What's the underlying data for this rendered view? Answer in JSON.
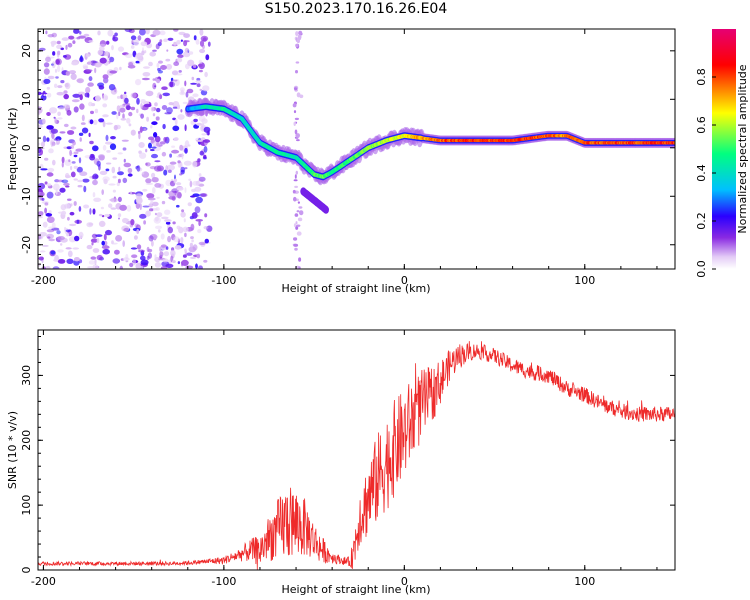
{
  "figure": {
    "title": "S150.2023.170.16.26.E04"
  },
  "chart_data": [
    {
      "type": "heatmap",
      "title": "",
      "xlabel": "Height of straight line (km)",
      "ylabel": "Frequency (Hz)",
      "xlim": [
        -203,
        150
      ],
      "ylim": [
        -25,
        24.5
      ],
      "xticks": [
        -200,
        -100,
        0,
        100
      ],
      "yticks": [
        -20,
        -10,
        0,
        10,
        20
      ],
      "colorbar": {
        "label": "Normalized spectral amplitude",
        "range": [
          0,
          1
        ],
        "ticks": [
          "0.0",
          "0.2",
          "0.4",
          "0.6",
          "0.8"
        ],
        "colors": [
          "#ffffff",
          "#e4ccf6",
          "#8a2be2",
          "#2a00ff",
          "#00c0ff",
          "#00ff80",
          "#ffff00",
          "#ff0000",
          "#e60073"
        ]
      },
      "ridge": {
        "x": [
          -120,
          -110,
          -100,
          -90,
          -80,
          -70,
          -60,
          -50,
          -45,
          -40,
          -30,
          -20,
          -10,
          0,
          20,
          40,
          60,
          80,
          90,
          100,
          110,
          120,
          150
        ],
        "y": [
          8,
          8.5,
          8,
          6,
          1,
          -1,
          -2,
          -5.5,
          -6,
          -5,
          -2.5,
          0,
          1.5,
          2.5,
          1.5,
          1.5,
          1.5,
          2.5,
          2.5,
          1,
          1,
          1,
          1
        ],
        "amplitude": [
          0.3,
          0.45,
          0.5,
          0.4,
          0.45,
          0.5,
          0.45,
          0.55,
          0.6,
          0.5,
          0.55,
          0.6,
          0.65,
          0.7,
          0.85,
          0.9,
          0.88,
          0.85,
          0.8,
          0.85,
          0.85,
          0.85,
          0.9
        ]
      }
    },
    {
      "type": "line",
      "title": "",
      "xlabel": "Height of straight line (km)",
      "ylabel": "SNR (10 * v/v)",
      "xlim": [
        -203,
        150
      ],
      "ylim": [
        0,
        370
      ],
      "xticks": [
        -200,
        -100,
        0,
        100
      ],
      "yticks": [
        0,
        100,
        200,
        300
      ],
      "color": "#ee2a2a",
      "series": [
        {
          "x": [
            -203,
            -190,
            -180,
            -170,
            -160,
            -150,
            -140,
            -130,
            -120,
            -110,
            -100,
            -95,
            -90,
            -85,
            -80,
            -75,
            -70,
            -65,
            -60,
            -55,
            -50,
            -45,
            -40,
            -35,
            -30,
            -28,
            -25,
            -20,
            -15,
            -10,
            -5,
            0,
            5,
            10,
            15,
            20,
            25,
            30,
            35,
            40,
            50,
            60,
            70,
            80,
            90,
            100,
            110,
            120,
            130,
            140,
            150
          ],
          "y": [
            10,
            10,
            10,
            10,
            10,
            10,
            10,
            10,
            11,
            13,
            15,
            20,
            25,
            30,
            30,
            50,
            60,
            75,
            70,
            65,
            45,
            30,
            20,
            15,
            12,
            30,
            80,
            110,
            140,
            165,
            190,
            210,
            235,
            255,
            270,
            290,
            315,
            330,
            335,
            338,
            330,
            315,
            305,
            300,
            280,
            270,
            255,
            245,
            240,
            240,
            240
          ],
          "noise": [
            3,
            3,
            3,
            3,
            3,
            3,
            3,
            3,
            3,
            4,
            6,
            8,
            12,
            18,
            25,
            35,
            50,
            60,
            55,
            45,
            30,
            20,
            10,
            6,
            8,
            30,
            45,
            60,
            70,
            75,
            75,
            70,
            65,
            55,
            45,
            35,
            25,
            20,
            15,
            12,
            12,
            12,
            12,
            12,
            12,
            12,
            12,
            12,
            12,
            12,
            12
          ]
        }
      ]
    }
  ]
}
